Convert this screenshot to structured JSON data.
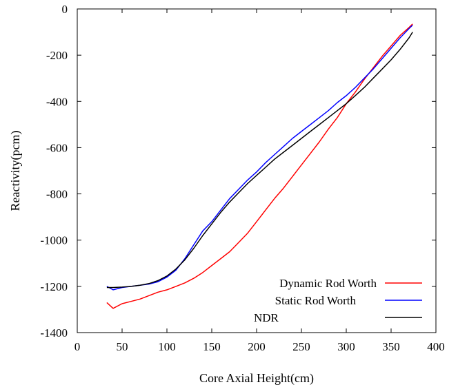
{
  "chart_data": {
    "type": "line",
    "title": "",
    "xlabel": "Core Axial Height(cm)",
    "ylabel": "Reactivity(pcm)",
    "xlim": [
      0,
      400
    ],
    "ylim": [
      -1400,
      0
    ],
    "xticks": [
      0,
      50,
      100,
      150,
      200,
      250,
      300,
      350,
      400
    ],
    "yticks": [
      0,
      -200,
      -400,
      -600,
      -800,
      -1000,
      -1200,
      -1400
    ],
    "grid": false,
    "legend_position": "bottom-right",
    "series": [
      {
        "name": "Dynamic Rod Worth",
        "color": "#ff0000",
        "x": [
          33,
          40,
          50,
          60,
          70,
          80,
          90,
          100,
          110,
          120,
          130,
          140,
          150,
          160,
          170,
          180,
          190,
          200,
          210,
          220,
          230,
          240,
          250,
          260,
          270,
          280,
          290,
          300,
          310,
          320,
          330,
          340,
          350,
          360,
          370,
          374
        ],
        "y": [
          -1270,
          -1295,
          -1275,
          -1265,
          -1255,
          -1240,
          -1225,
          -1215,
          -1200,
          -1185,
          -1165,
          -1140,
          -1110,
          -1080,
          -1050,
          -1010,
          -970,
          -920,
          -870,
          -820,
          -775,
          -725,
          -675,
          -625,
          -575,
          -520,
          -470,
          -410,
          -360,
          -305,
          -255,
          -205,
          -160,
          -115,
          -80,
          -65
        ]
      },
      {
        "name": "Static Rod Worth",
        "color": "#0000ff",
        "x": [
          33,
          40,
          50,
          60,
          70,
          80,
          90,
          100,
          110,
          120,
          130,
          140,
          150,
          160,
          170,
          180,
          190,
          200,
          210,
          220,
          230,
          240,
          250,
          260,
          270,
          280,
          290,
          300,
          310,
          320,
          330,
          340,
          350,
          360,
          370,
          374
        ],
        "y": [
          -1200,
          -1215,
          -1205,
          -1200,
          -1195,
          -1190,
          -1180,
          -1160,
          -1130,
          -1080,
          -1020,
          -960,
          -920,
          -870,
          -820,
          -780,
          -740,
          -705,
          -665,
          -630,
          -595,
          -560,
          -530,
          -500,
          -470,
          -440,
          -405,
          -375,
          -340,
          -300,
          -260,
          -215,
          -170,
          -125,
          -85,
          -70
        ]
      },
      {
        "name": "NDR",
        "color": "#000000",
        "x": [
          33,
          40,
          50,
          60,
          70,
          80,
          90,
          100,
          110,
          120,
          130,
          140,
          150,
          160,
          170,
          180,
          190,
          200,
          210,
          220,
          230,
          240,
          250,
          260,
          270,
          280,
          290,
          300,
          310,
          320,
          330,
          340,
          350,
          360,
          370,
          374
        ],
        "y": [
          -1205,
          -1205,
          -1203,
          -1200,
          -1195,
          -1188,
          -1175,
          -1155,
          -1125,
          -1085,
          -1035,
          -980,
          -930,
          -880,
          -835,
          -795,
          -755,
          -720,
          -685,
          -650,
          -620,
          -590,
          -560,
          -530,
          -500,
          -470,
          -440,
          -410,
          -375,
          -340,
          -300,
          -260,
          -220,
          -175,
          -125,
          -100
        ]
      }
    ]
  }
}
